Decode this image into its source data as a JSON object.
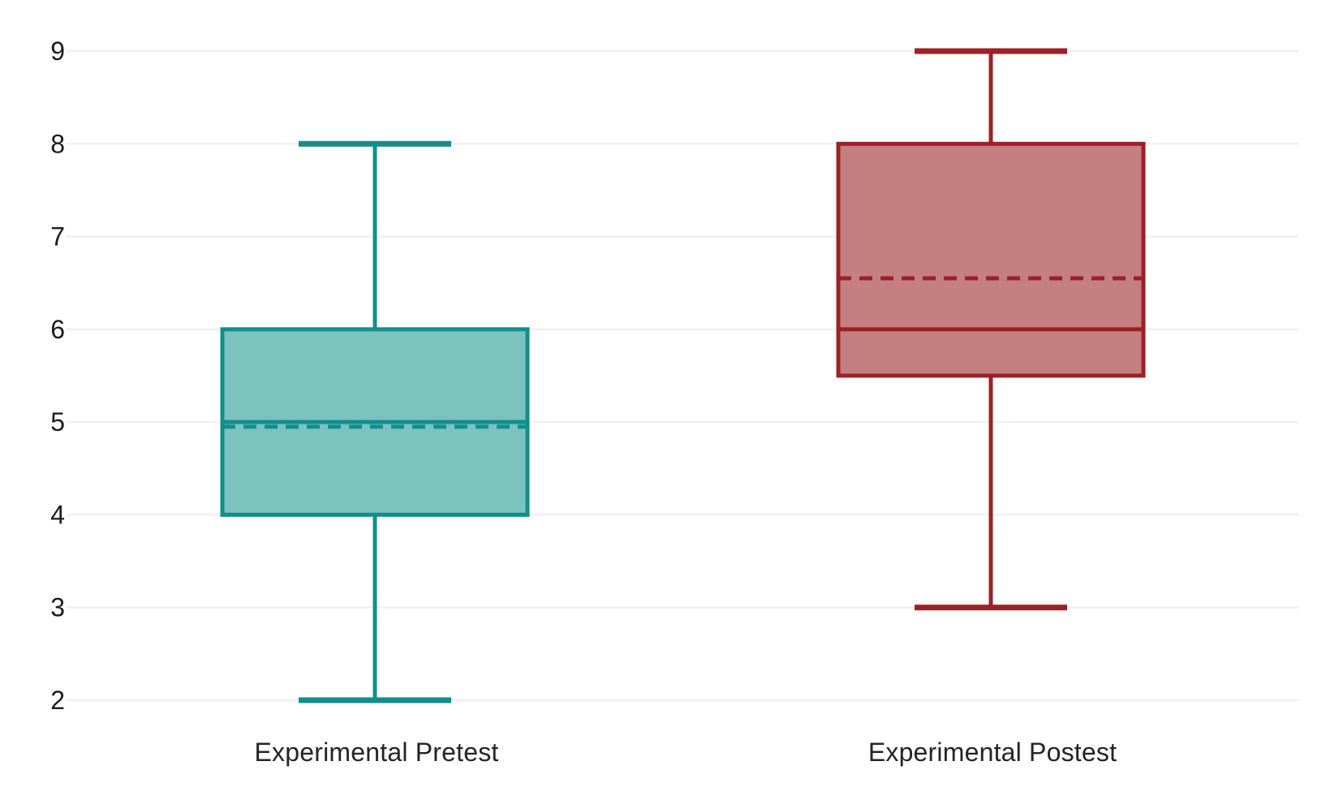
{
  "chart_data": {
    "type": "boxplot",
    "title": "",
    "xlabel": "",
    "ylabel": "",
    "categories": [
      "Experimental Pretest",
      "Experimental Postest"
    ],
    "series": [
      {
        "name": "Experimental Pretest",
        "min": 2,
        "q1": 4,
        "median": 5,
        "mean": 4.95,
        "q3": 6,
        "max": 8,
        "stroke_color": "#108f8c",
        "fill_color": "#7cc2bf"
      },
      {
        "name": "Experimental Postest",
        "min": 3,
        "q1": 5.5,
        "median": 6,
        "mean": 6.55,
        "q3": 8,
        "max": 9,
        "stroke_color": "#9c2125",
        "fill_color": "#c48081"
      }
    ],
    "yticks": [
      9,
      8,
      7,
      6,
      5,
      4,
      3,
      2
    ],
    "ylim": [
      2,
      9
    ],
    "grid": true,
    "gridline_color": "#f0f0f0",
    "tick_label_color": "#1c1c1c",
    "category_label_color": "#242424",
    "legend_position": "none",
    "median_line_style": "solid",
    "mean_line_style": "dashed"
  }
}
